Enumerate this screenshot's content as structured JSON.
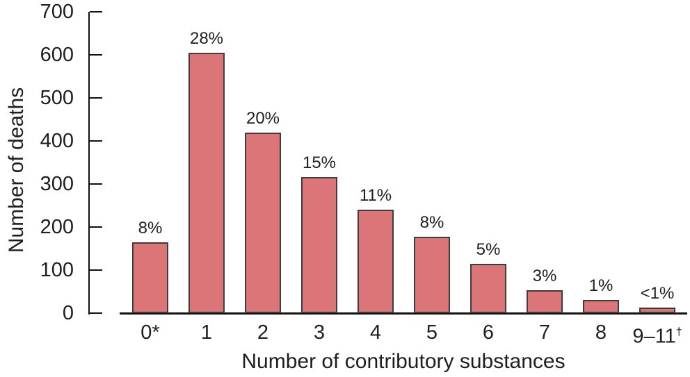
{
  "chart_data": {
    "type": "bar",
    "xlabel": "Number of contributory substances",
    "ylabel": "Number of deaths",
    "ylim": [
      0,
      700
    ],
    "ytick_interval": 100,
    "yticks": [
      0,
      100,
      200,
      300,
      400,
      500,
      600,
      700
    ],
    "categories": [
      "0*",
      "1",
      "2",
      "3",
      "4",
      "5",
      "6",
      "7",
      "8",
      "9–11"
    ],
    "category_superscripts": [
      "",
      "",
      "",
      "",
      "",
      "",
      "",
      "",
      "",
      "†"
    ],
    "values": [
      165,
      605,
      420,
      316,
      240,
      178,
      115,
      54,
      30,
      13
    ],
    "bar_labels": [
      "8%",
      "28%",
      "20%",
      "15%",
      "11%",
      "8%",
      "5%",
      "3%",
      "1%",
      "<1%"
    ],
    "grid": false,
    "legend_position": "none",
    "colors": {
      "bar_fill": "#db7578",
      "bar_border": "#3d3d3d",
      "axis": "#111111",
      "text": "#1e1e1e",
      "background": "#ffffff"
    }
  }
}
